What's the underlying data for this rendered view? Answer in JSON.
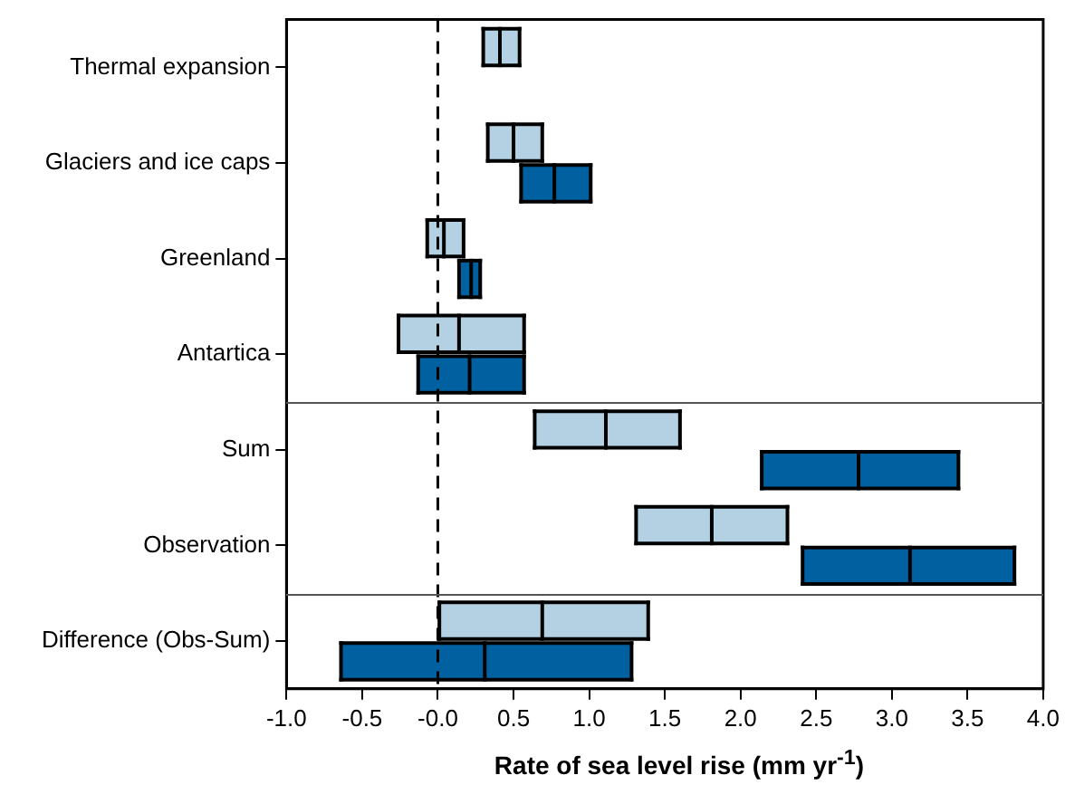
{
  "chart_data": {
    "type": "box",
    "orientation": "horizontal",
    "xlabel": "Rate of sea level rise (mm yr$^{-1}$)",
    "categories": [
      "Thermal expansion",
      "Glaciers and ice caps",
      "Greenland",
      "Antartica",
      "Sum",
      "Observation",
      "Difference (Obs-Sum)"
    ],
    "series": [
      {
        "color": "#b3d1e3",
        "boxes": [
          {
            "low": 0.3,
            "q1": 0.3,
            "median": 0.41,
            "q3": 0.54,
            "high": 0.54
          },
          {
            "low": 0.33,
            "q1": 0.33,
            "median": 0.5,
            "q3": 0.69,
            "high": 0.69
          },
          {
            "low": -0.07,
            "q1": -0.07,
            "median": 0.04,
            "q3": 0.17,
            "high": 0.17
          },
          {
            "low": -0.26,
            "q1": -0.26,
            "median": 0.14,
            "q3": 0.57,
            "high": 0.57
          },
          {
            "low": 0.64,
            "q1": 0.64,
            "median": 1.11,
            "q3": 1.6,
            "high": 1.6
          },
          {
            "low": 1.31,
            "q1": 1.31,
            "median": 1.81,
            "q3": 2.31,
            "high": 2.31
          },
          {
            "low": 0.01,
            "q1": 0.01,
            "median": 0.69,
            "q3": 1.39,
            "high": 1.39
          }
        ]
      },
      {
        "color": "#0060a0",
        "boxes": [
          null,
          {
            "low": 0.55,
            "q1": 0.55,
            "median": 0.77,
            "q3": 1.01,
            "high": 1.01
          },
          {
            "low": 0.14,
            "q1": 0.14,
            "median": 0.22,
            "q3": 0.28,
            "high": 0.28
          },
          {
            "low": -0.13,
            "q1": -0.13,
            "median": 0.21,
            "q3": 0.57,
            "high": 0.57
          },
          {
            "low": 2.14,
            "q1": 2.14,
            "median": 2.78,
            "q3": 3.44,
            "high": 3.44
          },
          {
            "low": 2.41,
            "q1": 2.41,
            "median": 3.12,
            "q3": 3.81,
            "high": 3.81
          },
          {
            "low": -0.64,
            "q1": -0.64,
            "median": 0.31,
            "q3": 1.28,
            "high": 1.28
          }
        ]
      }
    ],
    "xlim": [
      -1.0,
      4.0
    ],
    "xticks": [
      {
        "value": -1,
        "label": "-1.0"
      },
      {
        "value": -0.5,
        "label": "-0.5"
      },
      {
        "value": 0,
        "label": "-0.0"
      },
      {
        "value": 0.5,
        "label": "0.5"
      },
      {
        "value": 1,
        "label": "1.0"
      },
      {
        "value": 1.5,
        "label": "1.5"
      },
      {
        "value": 2,
        "label": "2.0"
      },
      {
        "value": 2.5,
        "label": "2.5"
      },
      {
        "value": 3,
        "label": "3.0"
      },
      {
        "value": 3.5,
        "label": "3.5"
      },
      {
        "value": 4,
        "label": "4.0"
      }
    ],
    "ref_lines": [
      {
        "axis": "x",
        "value": 0,
        "color": "#000000",
        "line_style": "dashed"
      }
    ],
    "grid": false,
    "legend": false
  }
}
